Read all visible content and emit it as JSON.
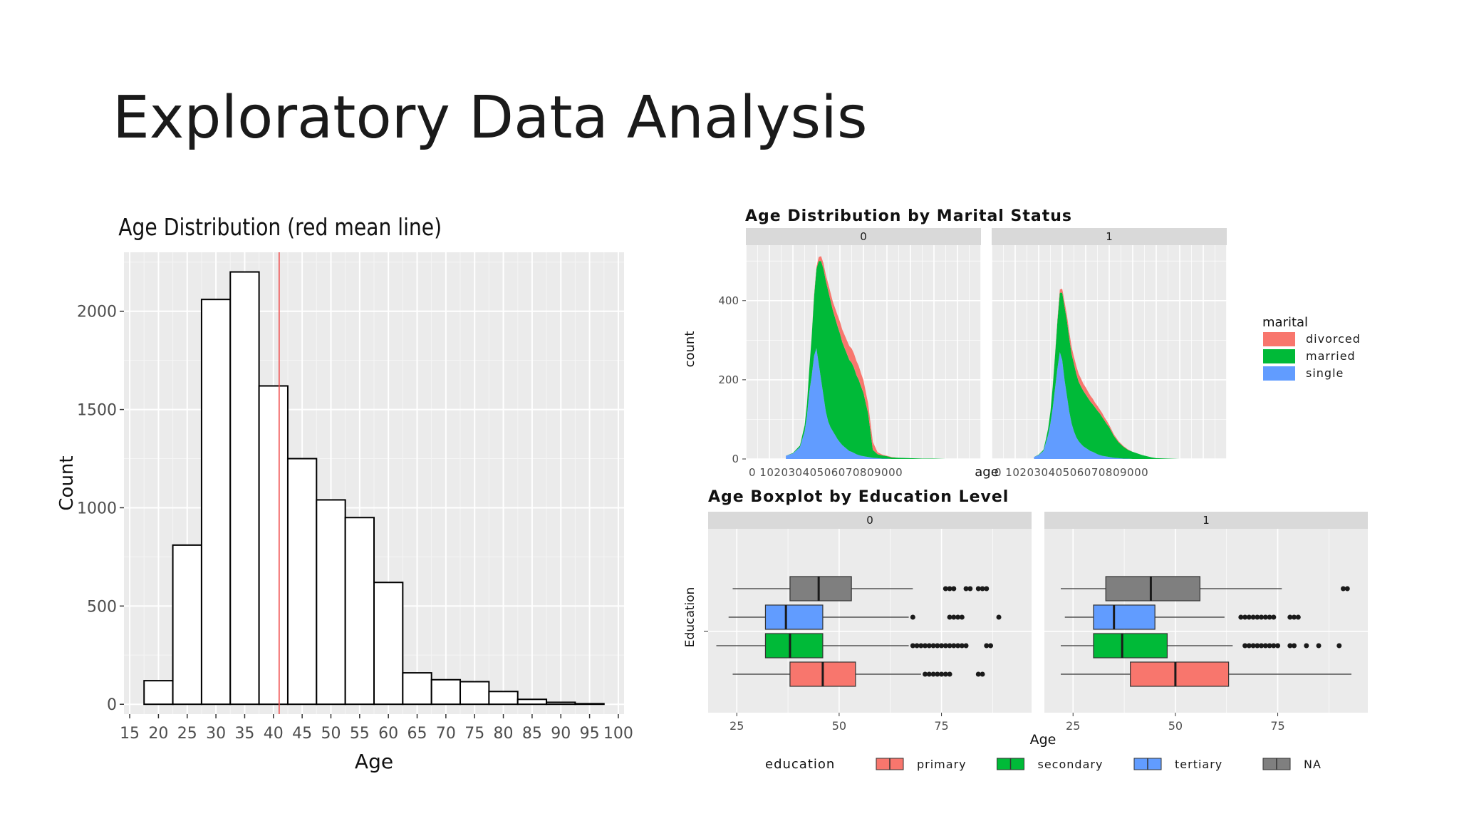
{
  "slide": {
    "title": "Exploratory Data Analysis"
  },
  "chart_data": [
    {
      "type": "bar",
      "title": "Age Distribution (red mean line)",
      "xlabel": "Age",
      "ylabel": "Count",
      "bin_width": 5,
      "bin_starts": [
        17.5,
        22.5,
        27.5,
        32.5,
        37.5,
        42.5,
        47.5,
        52.5,
        57.5,
        62.5,
        67.5,
        72.5,
        77.5,
        82.5,
        87.5,
        92.5
      ],
      "values": [
        120,
        810,
        2060,
        2200,
        1620,
        1250,
        1040,
        950,
        620,
        160,
        125,
        115,
        65,
        25,
        10,
        3
      ],
      "mean": 41,
      "xlim": [
        14,
        101
      ],
      "ylim": [
        -50,
        2300
      ],
      "xticks": [
        "15",
        "20",
        "25",
        "30",
        "35",
        "40",
        "45",
        "50",
        "55",
        "60",
        "65",
        "70",
        "75",
        "80",
        "85",
        "90",
        "95",
        "100"
      ],
      "yticks": [
        "0",
        "500",
        "1000",
        "1500",
        "2000"
      ],
      "grid": true,
      "colors": {
        "panel": "#ebebeb",
        "grid": "#ffffff",
        "bar_fill": "#ffffff",
        "bar_stroke": "#000000",
        "mean_line": "#f05050"
      }
    },
    {
      "type": "area",
      "title": "Age Distribution by Marital Status",
      "xlabel": "age",
      "ylabel": "count",
      "facets": [
        "0",
        "1"
      ],
      "x_tick_label": "0 10203040506070809000",
      "xlim": [
        0,
        100
      ],
      "ylim": [
        0,
        540
      ],
      "yticks": [
        "0",
        "200",
        "400"
      ],
      "grid": true,
      "legend": {
        "title": "marital",
        "placement": "right"
      },
      "series": [
        {
          "name": "divorced",
          "color": "#f8766d",
          "panels": [
            {
              "x": [
                17,
                20,
                23,
                25,
                26,
                27,
                28,
                29,
                30,
                31,
                32,
                33,
                34,
                35,
                36,
                37,
                38,
                39,
                40,
                41,
                42,
                43,
                44,
                45,
                46,
                47,
                48,
                49,
                50,
                52,
                54,
                56,
                58,
                60,
                62,
                65,
                70,
                75,
                80,
                85,
                90,
                95
              ],
              "values": [
                0,
                0,
                0,
                0,
                0,
                0,
                1,
                3,
                5,
                10,
                12,
                14,
                15,
                18,
                20,
                22,
                25,
                28,
                30,
                32,
                33,
                34,
                35,
                36,
                36,
                36,
                35,
                33,
                32,
                25,
                20,
                5,
                2,
                1,
                1,
                0,
                0,
                0,
                0,
                0,
                0,
                0
              ]
            },
            {
              "x": [
                18,
                20,
                22,
                23,
                24,
                25,
                26,
                27,
                28,
                29,
                30,
                31,
                32,
                33,
                34,
                35,
                36,
                37,
                38,
                39,
                40,
                41,
                42,
                43,
                44,
                45,
                46,
                47,
                48,
                49,
                50,
                52,
                54,
                56,
                58,
                60,
                62,
                64,
                66,
                68,
                70,
                75,
                80,
                85,
                90,
                95
              ],
              "values": [
                0,
                0,
                0,
                0,
                0,
                0,
                1,
                2,
                5,
                8,
                10,
                12,
                14,
                16,
                18,
                18,
                20,
                20,
                20,
                18,
                18,
                16,
                15,
                14,
                12,
                12,
                10,
                10,
                8,
                8,
                6,
                4,
                3,
                2,
                1,
                0,
                0,
                0,
                0,
                0,
                0,
                0,
                0,
                0,
                0,
                0
              ]
            }
          ]
        },
        {
          "name": "married",
          "color": "#00ba38",
          "panels": [
            {
              "x": [
                17,
                20,
                23,
                25,
                26,
                27,
                28,
                29,
                30,
                31,
                32,
                33,
                34,
                35,
                36,
                37,
                38,
                39,
                40,
                41,
                42,
                43,
                44,
                45,
                46,
                47,
                48,
                49,
                50,
                52,
                54,
                56,
                58,
                60,
                62,
                65,
                70,
                75,
                80,
                85,
                90,
                95
              ],
              "values": [
                0,
                1,
                4,
                15,
                30,
                60,
                100,
                150,
                200,
                260,
                300,
                320,
                330,
                330,
                320,
                305,
                295,
                285,
                275,
                260,
                250,
                240,
                230,
                225,
                215,
                200,
                190,
                175,
                160,
                110,
                20,
                10,
                8,
                6,
                4,
                3,
                2,
                1,
                1,
                0,
                0,
                0
              ]
            },
            {
              "x": [
                18,
                20,
                22,
                23,
                24,
                25,
                26,
                27,
                28,
                29,
                30,
                31,
                32,
                33,
                34,
                35,
                36,
                37,
                38,
                39,
                40,
                41,
                42,
                43,
                44,
                45,
                46,
                47,
                48,
                49,
                50,
                52,
                54,
                56,
                58,
                60,
                62,
                64,
                66,
                68,
                70,
                75,
                80,
                85,
                90,
                95
              ],
              "values": [
                0,
                1,
                3,
                8,
                16,
                30,
                55,
                85,
                120,
                150,
                170,
                185,
                190,
                185,
                175,
                170,
                160,
                150,
                145,
                140,
                135,
                130,
                125,
                120,
                115,
                110,
                105,
                98,
                90,
                82,
                75,
                55,
                40,
                30,
                22,
                18,
                14,
                10,
                7,
                4,
                2,
                1,
                0,
                0,
                0,
                0
              ]
            }
          ]
        },
        {
          "name": "single",
          "color": "#619cff",
          "panels": [
            {
              "x": [
                17,
                20,
                23,
                25,
                26,
                27,
                28,
                29,
                30,
                31,
                32,
                33,
                34,
                35,
                36,
                37,
                38,
                39,
                40,
                41,
                42,
                43,
                44,
                45,
                46,
                47,
                48,
                49,
                50,
                52,
                54,
                56,
                58,
                60,
                62,
                65,
                70,
                75,
                80,
                85,
                90,
                95
              ],
              "values": [
                8,
                14,
                30,
                70,
                110,
                170,
                210,
                260,
                280,
                240,
                200,
                160,
                120,
                95,
                80,
                70,
                60,
                50,
                42,
                35,
                30,
                25,
                20,
                18,
                15,
                12,
                10,
                8,
                7,
                5,
                3,
                2,
                1,
                1,
                0,
                0,
                0,
                0,
                0,
                0,
                0,
                0
              ]
            },
            {
              "x": [
                18,
                20,
                22,
                23,
                24,
                25,
                26,
                27,
                28,
                29,
                30,
                31,
                32,
                33,
                34,
                35,
                36,
                37,
                38,
                39,
                40,
                41,
                42,
                43,
                44,
                45,
                46,
                47,
                48,
                49,
                50,
                52,
                54,
                56,
                58,
                60,
                62,
                64,
                66,
                68,
                70,
                75,
                80,
                85,
                90,
                95
              ],
              "values": [
                5,
                10,
                20,
                40,
                60,
                90,
                130,
                180,
                230,
                270,
                250,
                200,
                160,
                120,
                90,
                70,
                55,
                45,
                38,
                32,
                28,
                24,
                20,
                18,
                15,
                12,
                10,
                8,
                7,
                6,
                5,
                3,
                2,
                1,
                1,
                0,
                0,
                0,
                0,
                0,
                0,
                0,
                0,
                0,
                0,
                0
              ]
            }
          ]
        }
      ]
    },
    {
      "type": "boxplot",
      "title": "Age Boxplot by Education Level",
      "xlabel": "Age",
      "ylabel": "Education",
      "facets": [
        "0",
        "1"
      ],
      "xlim": [
        18,
        97
      ],
      "xticks": [
        25,
        50,
        75
      ],
      "grid": true,
      "legend": {
        "title": "education",
        "placement": "bottom"
      },
      "series": [
        {
          "name": "NA",
          "color": "#7f7f7f",
          "panels": [
            {
              "min": 24,
              "q1": 38,
              "median": 45,
              "q3": 53,
              "max": 68,
              "outliers": [
                76,
                77,
                78,
                81,
                82,
                84,
                85,
                86
              ]
            },
            {
              "min": 22,
              "q1": 33,
              "median": 44,
              "q3": 56,
              "max": 76,
              "outliers": [
                91,
                92
              ]
            }
          ]
        },
        {
          "name": "tertiary",
          "color": "#619cff",
          "panels": [
            {
              "min": 23,
              "q1": 32,
              "median": 37,
              "q3": 46,
              "max": 67,
              "outliers": [
                68,
                77,
                78,
                79,
                80,
                89
              ]
            },
            {
              "min": 23,
              "q1": 30,
              "median": 35,
              "q3": 45,
              "max": 62,
              "outliers": [
                66,
                67,
                68,
                69,
                70,
                71,
                72,
                73,
                74,
                78,
                79,
                80
              ]
            }
          ]
        },
        {
          "name": "secondary",
          "color": "#00ba38",
          "panels": [
            {
              "min": 20,
              "q1": 32,
              "median": 38,
              "q3": 46,
              "max": 67,
              "outliers": [
                68,
                69,
                70,
                71,
                72,
                73,
                74,
                75,
                76,
                77,
                78,
                79,
                80,
                81,
                86,
                87
              ]
            },
            {
              "min": 22,
              "q1": 30,
              "median": 37,
              "q3": 48,
              "max": 64,
              "outliers": [
                67,
                68,
                69,
                70,
                71,
                72,
                73,
                74,
                75,
                78,
                79,
                82,
                85,
                90
              ]
            }
          ]
        },
        {
          "name": "primary",
          "color": "#f8766d",
          "panels": [
            {
              "min": 24,
              "q1": 38,
              "median": 46,
              "q3": 54,
              "max": 70,
              "outliers": [
                71,
                72,
                73,
                74,
                75,
                76,
                77,
                84,
                85
              ]
            },
            {
              "min": 22,
              "q1": 39,
              "median": 50,
              "q3": 63,
              "max": 93,
              "outliers": []
            }
          ]
        }
      ],
      "legend_order": [
        "primary",
        "secondary",
        "tertiary",
        "NA"
      ]
    }
  ]
}
